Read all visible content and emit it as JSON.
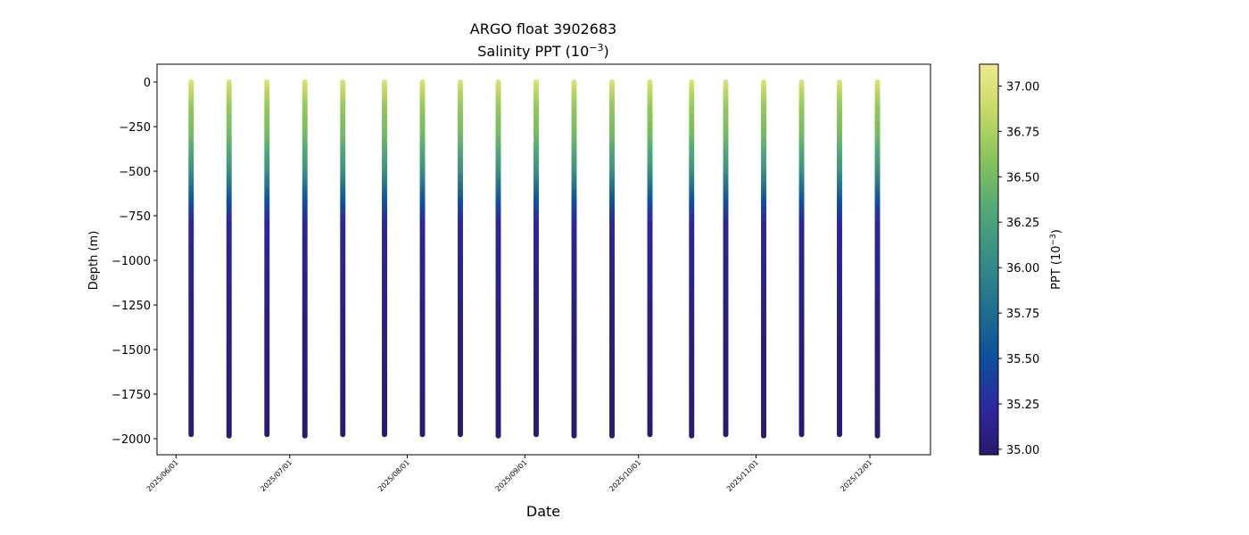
{
  "chart_data": {
    "type": "scatter",
    "title": "ARGO float 3902683",
    "subtitle_prefix": "Salinity PPT (10",
    "subtitle_exp": "−3",
    "subtitle_suffix": ")",
    "xlabel": "Date",
    "ylabel": "Depth (m)",
    "colorbar_label_prefix": "PPT (10",
    "colorbar_label_exp": "−3",
    "colorbar_label_suffix": ")",
    "xlim": [
      "2025-05-27",
      "2025-12-17"
    ],
    "ylim": [
      -2090,
      100
    ],
    "y_ticks": [
      0,
      -250,
      -500,
      -750,
      -1000,
      -1250,
      -1500,
      -1750,
      -2000
    ],
    "y_tick_labels": [
      "0",
      "−250",
      "−500",
      "−750",
      "−1000",
      "−1250",
      "−1500",
      "−1750",
      "−2000"
    ],
    "x_ticks": [
      "2025-06-01",
      "2025-07-01",
      "2025-08-01",
      "2025-09-01",
      "2025-10-01",
      "2025-11-01",
      "2025-12-01"
    ],
    "x_tick_labels": [
      "2025/06/01",
      "2025/07/01",
      "2025/08/01",
      "2025/09/01",
      "2025/10/01",
      "2025/11/01",
      "2025/12/01"
    ],
    "colorbar_range": [
      34.97,
      37.12
    ],
    "colorbar_ticks": [
      35.0,
      35.25,
      35.5,
      35.75,
      36.0,
      36.25,
      36.5,
      36.75,
      37.0
    ],
    "colorbar_tick_labels": [
      "35.00",
      "35.25",
      "35.50",
      "35.75",
      "36.00",
      "36.25",
      "36.50",
      "36.75",
      "37.00"
    ],
    "colormap": "haline",
    "colormap_stops": [
      "#2a186c",
      "#2b2aa0",
      "#0f5099",
      "#226f8f",
      "#388c86",
      "#52a878",
      "#84c25e",
      "#c4d864",
      "#f1e98f"
    ],
    "profile_dates": [
      "2025-06-05",
      "2025-06-15",
      "2025-06-25",
      "2025-07-05",
      "2025-07-15",
      "2025-07-26",
      "2025-08-05",
      "2025-08-15",
      "2025-08-25",
      "2025-09-04",
      "2025-09-14",
      "2025-09-24",
      "2025-10-04",
      "2025-10-15",
      "2025-10-24",
      "2025-11-03",
      "2025-11-13",
      "2025-11-23",
      "2025-12-03"
    ],
    "profile_max_depths": [
      -1980,
      -1985,
      -1980,
      -1985,
      -1980,
      -1980,
      -1980,
      -1980,
      -1985,
      -1980,
      -1990,
      -1985,
      -1980,
      -1990,
      -1980,
      -1985,
      -1980,
      -1980,
      -1985
    ],
    "profile_salinity_depths": [
      0,
      -50,
      -150,
      -300,
      -500,
      -650,
      -800,
      -1000,
      -1500,
      -2000
    ],
    "profile_salinity_values": [
      37.0,
      36.85,
      36.65,
      36.5,
      36.1,
      35.6,
      35.2,
      35.15,
      35.05,
      35.0
    ]
  }
}
